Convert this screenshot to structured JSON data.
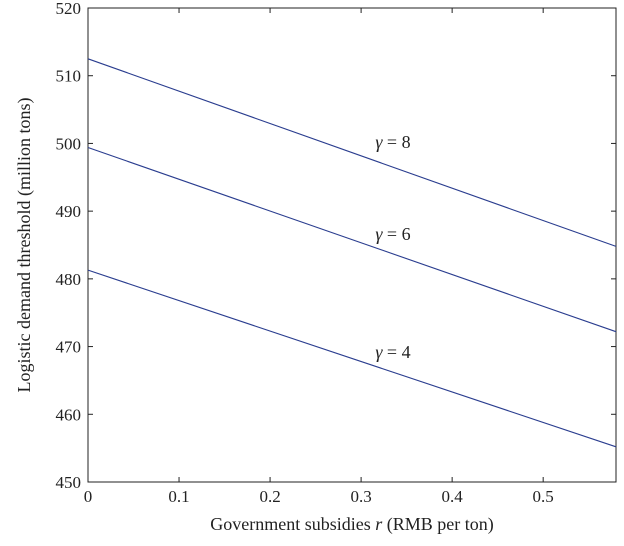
{
  "chart_data": {
    "type": "line",
    "title": "",
    "xlabel_parts": {
      "pre": "Government subsidies ",
      "var": "r",
      "post": " (RMB per ton)"
    },
    "ylabel": "Logistic demand threshold (million tons)",
    "xlim": [
      0,
      0.58
    ],
    "ylim": [
      450,
      520
    ],
    "xticks": [
      0,
      0.1,
      0.2,
      0.3,
      0.4,
      0.5
    ],
    "xtick_labels": [
      "0",
      "0.1",
      "0.2",
      "0.3",
      "0.4",
      "0.5"
    ],
    "yticks": [
      450,
      460,
      470,
      480,
      490,
      500,
      510,
      520
    ],
    "ytick_labels": [
      "450",
      "460",
      "470",
      "480",
      "490",
      "500",
      "510",
      "520"
    ],
    "grid": false,
    "line_color": "#2a3d8f",
    "series": [
      {
        "symbol": "γ",
        "value_text": " = 8",
        "x": [
          0,
          0.58
        ],
        "y": [
          512.5,
          484.8
        ],
        "label_pos": [
          0.335,
          500.2
        ]
      },
      {
        "symbol": "γ",
        "value_text": " = 6",
        "x": [
          0,
          0.58
        ],
        "y": [
          499.4,
          472.2
        ],
        "label_pos": [
          0.335,
          486.6
        ]
      },
      {
        "symbol": "γ",
        "value_text": " = 4",
        "x": [
          0,
          0.58
        ],
        "y": [
          481.3,
          455.2
        ],
        "label_pos": [
          0.335,
          469.2
        ]
      }
    ]
  }
}
